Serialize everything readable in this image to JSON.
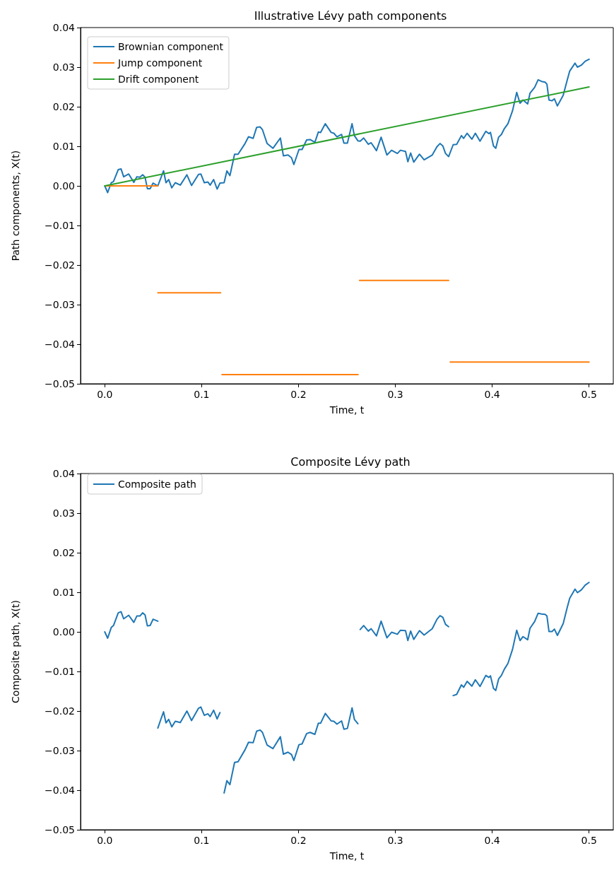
{
  "chart_data": [
    {
      "type": "line",
      "title": "Illustrative Lévy path components",
      "xlabel": "Time, t",
      "ylabel": "Path components, X(t)",
      "legend": "top left",
      "marker": "none",
      "line_style": "solid",
      "xlim": [
        -0.025,
        0.525
      ],
      "xticks": [
        {
          "value": 0,
          "label": "0.0"
        },
        {
          "value": 0.1,
          "label": "0.1"
        },
        {
          "value": 0.2,
          "label": "0.2"
        },
        {
          "value": 0.3,
          "label": "0.3"
        },
        {
          "value": 0.4,
          "label": "0.4"
        },
        {
          "value": 0.5,
          "label": "0.5"
        }
      ],
      "ylim": [
        -0.05,
        0.04
      ],
      "yticks": [
        {
          "value": -0.05,
          "label": "−0.05"
        },
        {
          "value": -0.04,
          "label": "−0.04"
        },
        {
          "value": -0.03,
          "label": "−0.03"
        },
        {
          "value": -0.02,
          "label": "−0.02"
        },
        {
          "value": -0.01,
          "label": "−0.01"
        },
        {
          "value": 0,
          "label": "0.00"
        },
        {
          "value": 0.01,
          "label": "0.01"
        },
        {
          "value": 0.02,
          "label": "0.02"
        },
        {
          "value": 0.03,
          "label": "0.03"
        },
        {
          "value": 0.04,
          "label": "0.04"
        }
      ],
      "series": [
        {
          "name": "Brownian component",
          "color": "#1f77b4",
          "x": [
            0,
            0.003,
            0.0067,
            0.009,
            0.0139,
            0.0168,
            0.0195,
            0.0247,
            0.03,
            0.0331,
            0.0363,
            0.0391,
            0.0416,
            0.044,
            0.0468,
            0.0499,
            0.0548,
            0.0579,
            0.0607,
            0.0632,
            0.066,
            0.0692,
            0.0728,
            0.078,
            0.0848,
            0.0896,
            0.0968,
            0.0992,
            0.1028,
            0.1064,
            0.1088,
            0.1124,
            0.116,
            0.1189,
            0.1232,
            0.1261,
            0.1292,
            0.134,
            0.1376,
            0.1448,
            0.1484,
            0.1532,
            0.1568,
            0.1604,
            0.1628,
            0.1676,
            0.1736,
            0.1813,
            0.1844,
            0.1892,
            0.1928,
            0.1952,
            0.2005,
            0.2037,
            0.2084,
            0.212,
            0.2169,
            0.2205,
            0.2228,
            0.2277,
            0.2337,
            0.2365,
            0.2397,
            0.2445,
            0.2469,
            0.2505,
            0.2553,
            0.2577,
            0.2613,
            0.2637,
            0.2673,
            0.2721,
            0.275,
            0.2805,
            0.2853,
            0.2913,
            0.2961,
            0.3021,
            0.3052,
            0.3105,
            0.3129,
            0.3158,
            0.319,
            0.3249,
            0.3297,
            0.3381,
            0.343,
            0.3461,
            0.349,
            0.3518,
            0.355,
            0.3597,
            0.3633,
            0.3682,
            0.3705,
            0.3741,
            0.379,
            0.3826,
            0.3874,
            0.3934,
            0.3965,
            0.3982,
            0.4013,
            0.4037,
            0.4066,
            0.4095,
            0.4126,
            0.4162,
            0.421,
            0.4253,
            0.4287,
            0.4318,
            0.4366,
            0.439,
            0.4438,
            0.4474,
            0.451,
            0.4546,
            0.4565,
            0.4586,
            0.4618,
            0.4642,
            0.4673,
            0.4733,
            0.4774,
            0.48,
            0.4855,
            0.488,
            0.492,
            0.496,
            0.5
          ],
          "values": [
            0,
            -0.0017,
            0.0008,
            0.0011,
            0.0041,
            0.0043,
            0.0023,
            0.003,
            0.0009,
            0.0023,
            0.0022,
            0.0028,
            0.0022,
            -0.0007,
            -0.0007,
            0.0007,
            0,
            0.002,
            0.0038,
            0.0008,
            0.0016,
            -0.0005,
            0.0008,
            0.0002,
            0.0028,
            0.0001,
            0.0029,
            0.003,
            0.0008,
            0.001,
            0.0002,
            0.0016,
            -0.0008,
            0.0007,
            0.0008,
            0.0038,
            0.0026,
            0.008,
            0.008,
            0.0107,
            0.0124,
            0.012,
            0.0148,
            0.0149,
            0.0142,
            0.0107,
            0.0095,
            0.0121,
            0.0076,
            0.0078,
            0.0071,
            0.0054,
            0.0092,
            0.0092,
            0.0116,
            0.0117,
            0.011,
            0.0136,
            0.0135,
            0.0157,
            0.0135,
            0.0133,
            0.0124,
            0.013,
            0.0108,
            0.0108,
            0.0157,
            0.0127,
            0.0114,
            0.0113,
            0.0121,
            0.0105,
            0.0109,
            0.0089,
            0.0123,
            0.0078,
            0.009,
            0.0082,
            0.009,
            0.0087,
            0.0061,
            0.0083,
            0.006,
            0.008,
            0.0066,
            0.0078,
            0.0099,
            0.0107,
            0.0101,
            0.0082,
            0.0074,
            0.0104,
            0.0105,
            0.0127,
            0.012,
            0.0133,
            0.0118,
            0.0133,
            0.0113,
            0.0138,
            0.0132,
            0.0135,
            0.0101,
            0.0095,
            0.0123,
            0.013,
            0.0145,
            0.0157,
            0.019,
            0.0236,
            0.0209,
            0.0217,
            0.0207,
            0.0234,
            0.0249,
            0.0268,
            0.0264,
            0.0262,
            0.0257,
            0.0217,
            0.0215,
            0.022,
            0.0202,
            0.0229,
            0.0267,
            0.029,
            0.031,
            0.03,
            0.0305,
            0.0315,
            0.032
          ]
        },
        {
          "name": "Jump component",
          "color": "#ff7f0e",
          "x": [
            0,
            0.0548,
            null,
            0.0548,
            0.1196,
            null,
            0.121,
            0.2615,
            null,
            0.263,
            0.355,
            null,
            0.3566,
            0.5
          ],
          "values": [
            0,
            0,
            null,
            -0.027,
            -0.027,
            null,
            -0.0477,
            -0.0477,
            null,
            -0.0239,
            -0.0239,
            null,
            -0.0445,
            -0.0445
          ]
        },
        {
          "name": "Drift component",
          "color": "#2ca02c",
          "x": [
            0,
            0.5
          ],
          "values": [
            0,
            0.025
          ]
        }
      ]
    },
    {
      "type": "line",
      "title": "Composite Lévy path",
      "xlabel": "Time, t",
      "ylabel": "Composite path, X(t)",
      "legend": "top left",
      "marker": "none",
      "line_style": "solid",
      "xlim": [
        -0.025,
        0.525
      ],
      "xticks": [
        {
          "value": 0,
          "label": "0.0"
        },
        {
          "value": 0.1,
          "label": "0.1"
        },
        {
          "value": 0.2,
          "label": "0.2"
        },
        {
          "value": 0.3,
          "label": "0.3"
        },
        {
          "value": 0.4,
          "label": "0.4"
        },
        {
          "value": 0.5,
          "label": "0.5"
        }
      ],
      "ylim": [
        -0.05,
        0.04
      ],
      "yticks": [
        {
          "value": -0.05,
          "label": "−0.05"
        },
        {
          "value": -0.04,
          "label": "−0.04"
        },
        {
          "value": -0.03,
          "label": "−0.03"
        },
        {
          "value": -0.02,
          "label": "−0.02"
        },
        {
          "value": -0.01,
          "label": "−0.01"
        },
        {
          "value": 0,
          "label": "0.00"
        },
        {
          "value": 0.01,
          "label": "0.01"
        },
        {
          "value": 0.02,
          "label": "0.02"
        },
        {
          "value": 0.03,
          "label": "0.03"
        },
        {
          "value": 0.04,
          "label": "0.04"
        }
      ],
      "series": [
        {
          "name": "Composite path",
          "color": "#1f77b4",
          "x": [
            0,
            0.003,
            0.0067,
            0.009,
            0.0139,
            0.0168,
            0.0195,
            0.0247,
            0.03,
            0.0331,
            0.0363,
            0.0391,
            0.0416,
            0.044,
            0.0468,
            0.0499,
            0.0548,
            null,
            0.0548,
            0.0579,
            0.0607,
            0.0632,
            0.066,
            0.0692,
            0.0728,
            0.078,
            0.0848,
            0.0896,
            0.0968,
            0.0992,
            0.1028,
            0.1064,
            0.1088,
            0.1124,
            0.116,
            0.1189,
            null,
            0.1232,
            0.1261,
            0.1292,
            0.134,
            0.1376,
            0.1448,
            0.1484,
            0.1532,
            0.1568,
            0.1604,
            0.1628,
            0.1676,
            0.1736,
            0.1813,
            0.1844,
            0.1892,
            0.1928,
            0.1952,
            0.2005,
            0.2037,
            0.2084,
            0.212,
            0.2169,
            0.2205,
            0.2228,
            0.2277,
            0.2337,
            0.2365,
            0.2397,
            0.2445,
            0.2469,
            0.2505,
            0.2553,
            0.2577,
            0.2613,
            null,
            0.2637,
            0.2673,
            0.2721,
            0.275,
            0.2805,
            0.2853,
            0.2913,
            0.2961,
            0.3021,
            0.3052,
            0.3105,
            0.3129,
            0.3158,
            0.319,
            0.3249,
            0.3297,
            0.3381,
            0.343,
            0.3461,
            0.349,
            0.3518,
            0.355,
            null,
            0.3597,
            0.3633,
            0.3682,
            0.3705,
            0.3741,
            0.379,
            0.3826,
            0.3874,
            0.3934,
            0.3965,
            0.3982,
            0.4013,
            0.4037,
            0.4066,
            0.4095,
            0.4126,
            0.4162,
            0.421,
            0.4253,
            0.4287,
            0.4318,
            0.4366,
            0.439,
            0.4438,
            0.4474,
            0.451,
            0.4546,
            0.4565,
            0.4586,
            0.4618,
            0.4642,
            0.4673,
            0.4733,
            0.4774,
            0.48,
            0.4855,
            0.488,
            0.492,
            0.496,
            0.5
          ],
          "values": [
            0,
            -0.0016,
            0.0011,
            0.0016,
            0.0048,
            0.0051,
            0.0033,
            0.0042,
            0.0024,
            0.004,
            0.004,
            0.0048,
            0.0043,
            0.0015,
            0.0016,
            0.0032,
            0.0027,
            null,
            -0.0243,
            -0.0221,
            -0.0202,
            -0.023,
            -0.0221,
            -0.024,
            -0.0226,
            -0.0229,
            -0.02,
            -0.0224,
            -0.0193,
            -0.019,
            -0.0211,
            -0.0207,
            -0.0214,
            -0.0198,
            -0.022,
            -0.0204,
            null,
            -0.0407,
            -0.0376,
            -0.0386,
            -0.033,
            -0.0328,
            -0.0298,
            -0.0279,
            -0.028,
            -0.0251,
            -0.0248,
            -0.0254,
            -0.0286,
            -0.0295,
            -0.0265,
            -0.0309,
            -0.0304,
            -0.031,
            -0.0325,
            -0.0285,
            -0.0283,
            -0.0257,
            -0.0254,
            -0.0259,
            -0.0231,
            -0.0231,
            -0.0206,
            -0.0225,
            -0.0226,
            -0.0233,
            -0.0225,
            -0.0246,
            -0.0244,
            -0.0192,
            -0.0221,
            -0.0232,
            null,
            0.0006,
            0.0016,
            0.0002,
            0.0008,
            -0.001,
            0.0027,
            -0.0015,
            -0.0001,
            -0.0006,
            0.0004,
            0.0003,
            -0.0022,
            0.0002,
            -0.0019,
            0.0003,
            -0.0008,
            0.0008,
            0.0032,
            0.0041,
            0.0037,
            0.0019,
            0.0013,
            null,
            -0.0161,
            -0.0158,
            -0.0134,
            -0.014,
            -0.0125,
            -0.0137,
            -0.0121,
            -0.0138,
            -0.011,
            -0.0115,
            -0.0111,
            -0.0143,
            -0.0148,
            -0.0119,
            -0.011,
            -0.0094,
            -0.008,
            -0.0044,
            0.0004,
            -0.0022,
            -0.0012,
            -0.002,
            0.0009,
            0.0026,
            0.0047,
            0.0045,
            0.0044,
            0.004,
            0.0001,
            0.0001,
            0.0007,
            -0.0009,
            0.0021,
            0.0061,
            0.0085,
            0.0108,
            0.0099,
            0.0106,
            0.0118,
            0.0125
          ]
        }
      ]
    }
  ]
}
